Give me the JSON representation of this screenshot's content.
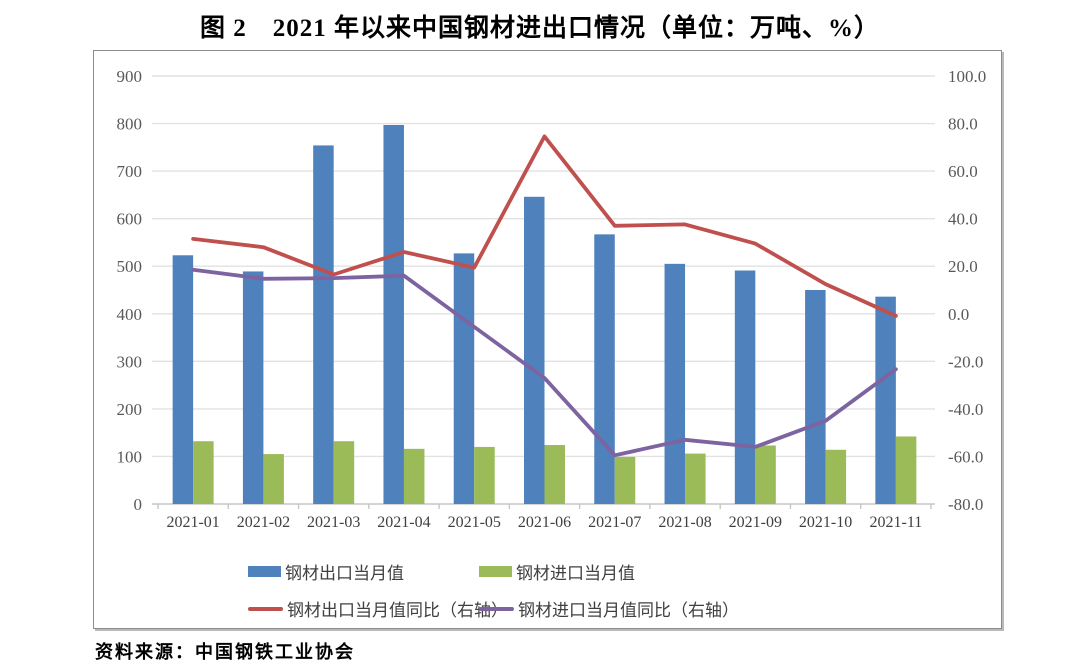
{
  "page": {
    "title": "图 2　2021 年以来中国钢材进出口情况（单位：万吨、%）",
    "source": "资料来源：中国钢铁工业协会"
  },
  "colors": {
    "export_bar": "#4f81bd",
    "import_bar": "#9bbb59",
    "export_yoy_line": "#c0504d",
    "import_yoy_line": "#7e63a1",
    "gridline": "#e2e2e2",
    "axis_line": "#c6c6c6",
    "tick_label": "#595959",
    "category_label": "#404040",
    "chart_border": "#8c8c8c"
  },
  "chart_data": {
    "type": "bar",
    "subtype": "combo-bar-line-dual-axis",
    "title": "图 2　2021 年以来中国钢材进出口情况（单位：万吨、%）",
    "categories": [
      "2021-01",
      "2021-02",
      "2021-03",
      "2021-04",
      "2021-05",
      "2021-06",
      "2021-07",
      "2021-08",
      "2021-09",
      "2021-10",
      "2021-11"
    ],
    "series": [
      {
        "name": "钢材出口当月值",
        "type": "bar",
        "axis": "left",
        "color": "#4f81bd",
        "values": [
          523,
          489,
          754,
          797,
          527,
          646,
          567,
          505,
          491,
          450,
          436
        ]
      },
      {
        "name": "钢材进口当月值",
        "type": "bar",
        "axis": "left",
        "color": "#9bbb59",
        "values": [
          132,
          105,
          132,
          116,
          120,
          124,
          99,
          106,
          123,
          114,
          142
        ]
      },
      {
        "name": "钢材出口当月值同比（右轴）",
        "type": "line",
        "axis": "right",
        "color": "#c0504d",
        "values": [
          31.5,
          28.0,
          16.5,
          26.0,
          19.4,
          74.6,
          37.0,
          37.6,
          29.5,
          12.5,
          -0.9
        ]
      },
      {
        "name": "钢材进口当月值同比（右轴）",
        "type": "line",
        "axis": "right",
        "color": "#7e63a1",
        "values": [
          18.5,
          14.7,
          15.0,
          16.0,
          -5.5,
          -27.0,
          -59.5,
          -53.0,
          -56.0,
          -45.0,
          -23.3
        ]
      }
    ],
    "left_axis": {
      "min": 0,
      "max": 900,
      "step": 100,
      "tick_labels": [
        "0",
        "100",
        "200",
        "300",
        "400",
        "500",
        "600",
        "700",
        "800",
        "900"
      ]
    },
    "right_axis": {
      "min": -80,
      "max": 100,
      "step": 20,
      "tick_labels": [
        "-80.0",
        "-60.0",
        "-40.0",
        "-20.0",
        "0.0",
        "20.0",
        "40.0",
        "60.0",
        "80.0",
        "100.0"
      ]
    },
    "grid": true,
    "legend_position": "bottom"
  }
}
